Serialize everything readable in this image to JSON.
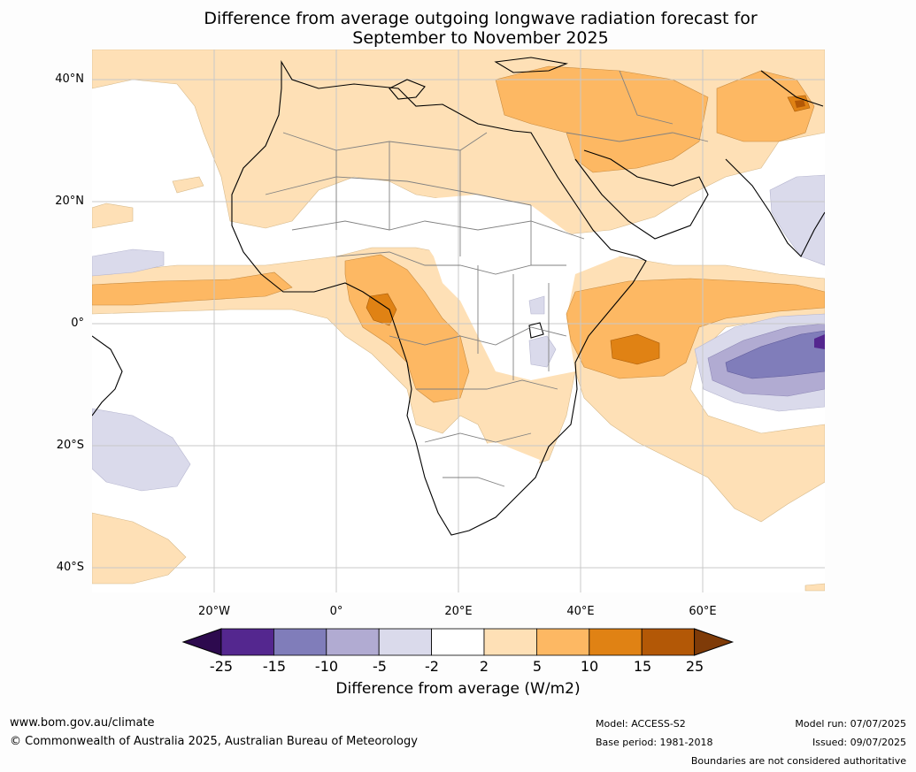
{
  "title_line1": "Difference from average outgoing longwave radiation forecast for",
  "title_line2": "September to November 2025",
  "lat_labels": [
    "40°N",
    "20°N",
    "0°",
    "20°S",
    "40°S"
  ],
  "lon_labels": [
    "20°W",
    "0°",
    "20°E",
    "40°E",
    "60°E"
  ],
  "colorbar": {
    "ticks": [
      "-25",
      "-15",
      "-10",
      "-5",
      "-2",
      "2",
      "5",
      "10",
      "15",
      "25"
    ],
    "colors": [
      "#2d0a4e",
      "#54278f",
      "#807dba",
      "#b1abd2",
      "#dadaeb",
      "#ffffff",
      "#fee0b6",
      "#fdb863",
      "#e08214",
      "#b35806",
      "#7f3b08"
    ],
    "label": "Difference from average (W/m2)"
  },
  "footer": {
    "url": "www.bom.gov.au/climate",
    "copyright": "© Commonwealth of Australia 2025, Australian Bureau of Meteorology",
    "model": "Model: ACCESS-S2",
    "base_period": "Base period: 1981-2018",
    "model_run": "Model run: 07/07/2025",
    "issued": "Issued: 09/07/2025",
    "disclaimer": "Boundaries are not considered authoritative"
  }
}
